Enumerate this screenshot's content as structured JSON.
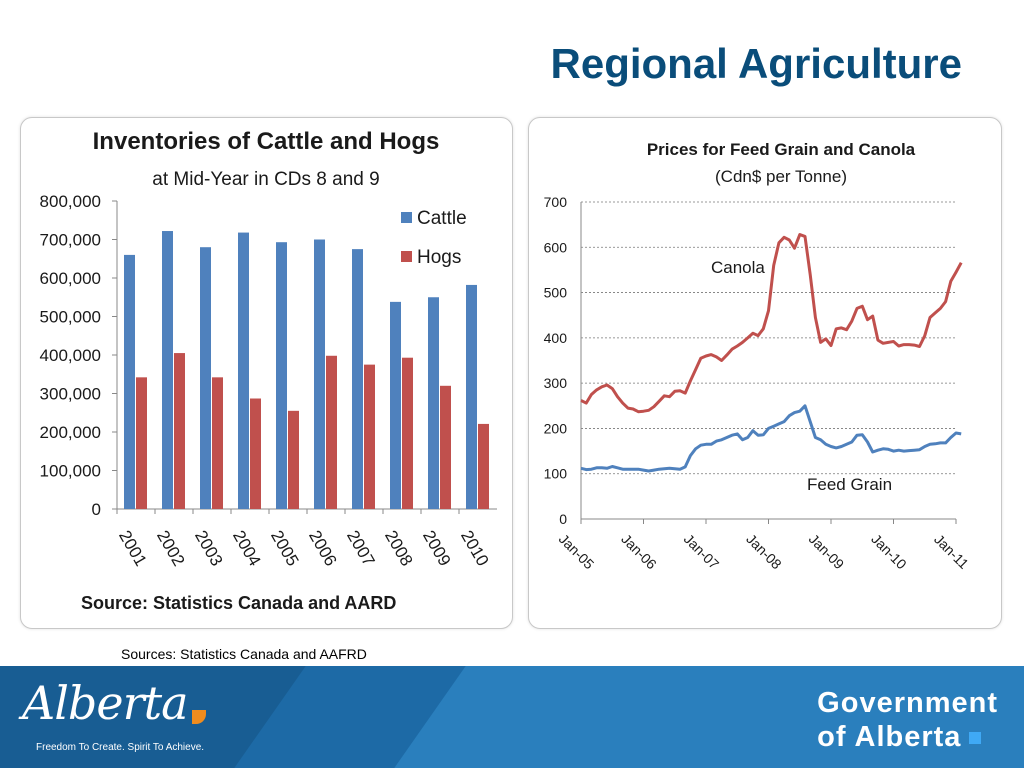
{
  "slide": {
    "title": "Regional Agriculture",
    "sources": "Sources: Statistics Canada and AAFRD"
  },
  "footer": {
    "logo_text": "Alberta",
    "tagline": "Freedom To Create. Spirit To Achieve.",
    "government_line1": "Government",
    "government_line2": "of Alberta"
  },
  "colors": {
    "title": "#0a4d7a",
    "cattle": "#4f81bd",
    "hogs": "#c0504d",
    "canola": "#c0504d",
    "feed_grain": "#4f81bd",
    "footer": "#1d6aa6"
  },
  "chart_data": [
    {
      "type": "bar",
      "title": "Inventories of Cattle and Hogs",
      "subtitle": "at Mid-Year in CDs 8 and 9",
      "source": "Source: Statistics Canada and AARD",
      "categories": [
        "2001",
        "2002",
        "2003",
        "2004",
        "2005",
        "2006",
        "2007",
        "2008",
        "2009",
        "2010"
      ],
      "series": [
        {
          "name": "Cattle",
          "values": [
            660000,
            722000,
            680000,
            718000,
            693000,
            700000,
            675000,
            538000,
            550000,
            582000
          ]
        },
        {
          "name": "Hogs",
          "values": [
            342000,
            405000,
            342000,
            287000,
            255000,
            398000,
            375000,
            393000,
            320000,
            221000
          ]
        }
      ],
      "ylim": [
        0,
        800000
      ],
      "yticks": [
        "0",
        "100,000",
        "200,000",
        "300,000",
        "400,000",
        "500,000",
        "600,000",
        "700,000",
        "800,000"
      ],
      "legend": "right",
      "grid": false
    },
    {
      "type": "line",
      "title": "Prices for Feed Grain and Canola",
      "subtitle": "(Cdn$ per Tonne)",
      "x_start_label": "Jan-05",
      "x_labels": [
        "Jan-05",
        "Jan-06",
        "Jan-07",
        "Jan-08",
        "Jan-09",
        "Jan-10",
        "Jan-11"
      ],
      "ylim": [
        0,
        700
      ],
      "yticks": [
        "0",
        "100",
        "200",
        "300",
        "400",
        "500",
        "600",
        "700"
      ],
      "grid": true,
      "series": [
        {
          "name": "Canola",
          "values": [
            262,
            256,
            275,
            285,
            292,
            296,
            288,
            270,
            256,
            245,
            243,
            237,
            238,
            240,
            248,
            260,
            272,
            270,
            282,
            283,
            278,
            305,
            330,
            355,
            360,
            363,
            358,
            350,
            362,
            375,
            382,
            390,
            400,
            410,
            405,
            420,
            460,
            560,
            610,
            622,
            616,
            598,
            628,
            624,
            540,
            445,
            390,
            398,
            383,
            420,
            422,
            418,
            437,
            465,
            470,
            440,
            448,
            395,
            388,
            390,
            392,
            382,
            385,
            385,
            384,
            381,
            405,
            445,
            455,
            465,
            480,
            525,
            545,
            566
          ]
        },
        {
          "name": "Feed Grain",
          "values": [
            112,
            109,
            110,
            113,
            113,
            112,
            116,
            113,
            110,
            110,
            110,
            110,
            108,
            106,
            108,
            110,
            111,
            112,
            111,
            110,
            115,
            140,
            155,
            163,
            165,
            165,
            172,
            175,
            180,
            185,
            188,
            175,
            180,
            195,
            185,
            186,
            200,
            205,
            210,
            215,
            228,
            235,
            238,
            250,
            215,
            180,
            175,
            165,
            160,
            157,
            160,
            165,
            170,
            185,
            186,
            170,
            148,
            152,
            155,
            154,
            150,
            152,
            150,
            151,
            152,
            153,
            160,
            165,
            166,
            168,
            168,
            180,
            190,
            188
          ]
        }
      ],
      "annotations": [
        "Canola",
        "Feed Grain"
      ]
    }
  ]
}
